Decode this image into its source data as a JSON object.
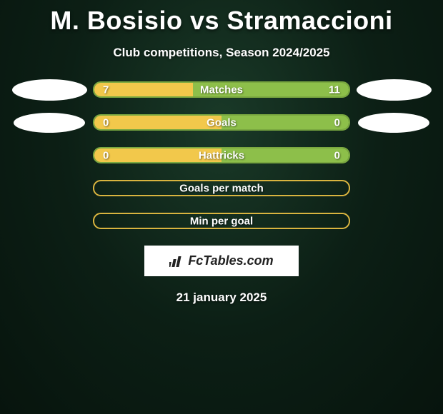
{
  "title": "M. Bosisio vs Stramaccioni",
  "subtitle": "Club competitions, Season 2024/2025",
  "date": "21 january 2025",
  "brand": "FcTables.com",
  "colors": {
    "left_fill": "#f2c84b",
    "right_fill": "#8dbf4a",
    "border_yellow": "#d9b43f",
    "border_green": "#7aa840",
    "bg_dark": "#0b1a12"
  },
  "rows": [
    {
      "label": "Matches",
      "left": "7",
      "right": "11",
      "left_pct": 38.9,
      "right_pct": 61.1,
      "show_left_avatar": true,
      "show_right_avatar": true,
      "avatar_small": false,
      "border": "#7aa840"
    },
    {
      "label": "Goals",
      "left": "0",
      "right": "0",
      "left_pct": 50,
      "right_pct": 50,
      "show_left_avatar": true,
      "show_right_avatar": true,
      "avatar_small": true,
      "border": "#7aa840"
    },
    {
      "label": "Hattricks",
      "left": "0",
      "right": "0",
      "left_pct": 50,
      "right_pct": 50,
      "show_left_avatar": false,
      "show_right_avatar": false,
      "avatar_small": false,
      "border": "#7aa840"
    },
    {
      "label": "Goals per match",
      "left": "",
      "right": "",
      "left_pct": 0,
      "right_pct": 0,
      "show_left_avatar": false,
      "show_right_avatar": false,
      "avatar_small": false,
      "border": "#d9b43f"
    },
    {
      "label": "Min per goal",
      "left": "",
      "right": "",
      "left_pct": 0,
      "right_pct": 0,
      "show_left_avatar": false,
      "show_right_avatar": false,
      "avatar_small": false,
      "border": "#d9b43f"
    }
  ]
}
